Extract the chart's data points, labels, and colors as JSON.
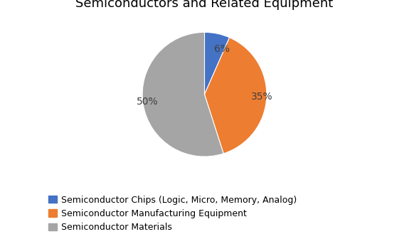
{
  "title": "Semiconductors and Related Equipment",
  "slices": [
    6,
    35,
    50
  ],
  "labels": [
    "6%",
    "35%",
    "50%"
  ],
  "colors": [
    "#4472C4",
    "#ED7D31",
    "#A5A5A5"
  ],
  "legend_labels": [
    "Semiconductor Chips (Logic, Micro, Memory, Analog)",
    "Semiconductor Manufacturing Equipment",
    "Semiconductor Materials"
  ],
  "background_color": "#FFFFFF",
  "title_fontsize": 13,
  "label_fontsize": 10,
  "legend_fontsize": 9,
  "startangle": 90
}
